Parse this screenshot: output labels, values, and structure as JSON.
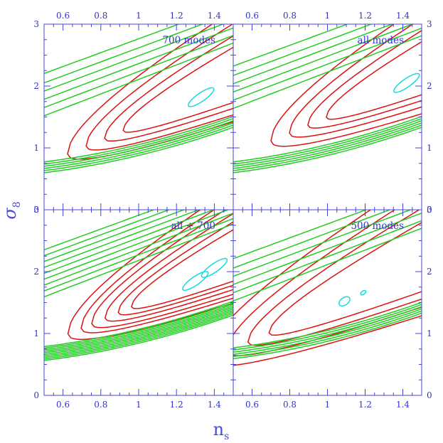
{
  "colors": {
    "axis": "#4444dd",
    "text": "#3333cc",
    "outer": "#22cc22",
    "mid": "#dd1111",
    "inner": "#11dddd"
  },
  "chart_data": {
    "type": "contour",
    "xlabel": "n",
    "xlabel_sub": "s",
    "ylabel": "σ",
    "ylabel_sub": "8",
    "xlim": [
      0.5,
      1.5
    ],
    "ylim": [
      0,
      3
    ],
    "xticks": [
      "0.6",
      "0.8",
      "1",
      "1.2",
      "1.4"
    ],
    "yticks": [
      "0",
      "1",
      "2",
      "3"
    ],
    "panels": [
      {
        "label": "700 modes",
        "position": "top-left",
        "best_fit": {
          "ns": 1.33,
          "sigma8": 1.82
        },
        "red_levels": [
          0.4,
          0.75
        ],
        "red_beyond": [
          1.1,
          1.45
        ],
        "green_inner": [
          1.9,
          2.25,
          2.6,
          2.95,
          3.3,
          3.7
        ],
        "green_outer": [
          1.95,
          2.3,
          2.65,
          3.0,
          3.35,
          3.7
        ],
        "cyan": [
          {
            "ns": 1.33,
            "sigma8": 1.82,
            "rx": 0.045,
            "ry": 0.045
          }
        ]
      },
      {
        "label": "all modes",
        "position": "top-right",
        "best_fit": {
          "ns": 1.42,
          "sigma8": 2.05
        },
        "red_levels": [
          0.45,
          0.8
        ],
        "red_beyond": [
          1.15,
          1.5
        ],
        "green_inner": [
          1.9,
          2.25,
          2.6,
          2.95,
          3.3,
          3.7
        ],
        "green_outer": [
          1.95,
          2.3,
          2.65,
          3.0,
          3.35,
          3.7
        ],
        "cyan": [
          {
            "ns": 1.42,
            "sigma8": 2.05,
            "rx": 0.045,
            "ry": 0.045
          }
        ]
      },
      {
        "label": "all + 700",
        "position": "bottom-left",
        "best_fit": {
          "ns": 1.36,
          "sigma8": 1.95
        },
        "red_levels": [
          0.35,
          0.6,
          0.85
        ],
        "red_beyond": [
          1.1,
          1.3,
          1.55
        ],
        "green_inner": [
          1.85,
          2.1,
          2.35,
          2.6,
          2.85,
          3.1,
          3.35,
          3.6,
          3.85
        ],
        "green_outer": [
          1.8,
          2.05,
          2.3,
          2.55,
          2.8,
          3.05,
          3.3,
          3.55,
          3.8,
          4.05
        ],
        "cyan": [
          {
            "ns": 1.3,
            "sigma8": 1.85,
            "rx": 0.045,
            "ry": 0.045
          },
          {
            "ns": 1.4,
            "sigma8": 2.06,
            "rx": 0.045,
            "ry": 0.045
          }
        ]
      },
      {
        "label": "500 modes",
        "position": "bottom-right",
        "best_fit": {
          "ns": 1.13,
          "sigma8": 1.58
        },
        "red_levels": [
          0.5,
          0.9
        ],
        "red_beyond": [
          1.3,
          1.7
        ],
        "green_inner": [
          1.9,
          2.25,
          2.6,
          2.95,
          3.3,
          3.7
        ],
        "green_outer": [
          2.0,
          2.35,
          2.7,
          3.05,
          3.4,
          3.75
        ],
        "cyan": [
          {
            "ns": 1.09,
            "sigma8": 1.52,
            "rx": 0.018,
            "ry": 0.04
          },
          {
            "ns": 1.19,
            "sigma8": 1.66,
            "rx": 0.009,
            "ry": 0.018
          }
        ]
      }
    ]
  }
}
